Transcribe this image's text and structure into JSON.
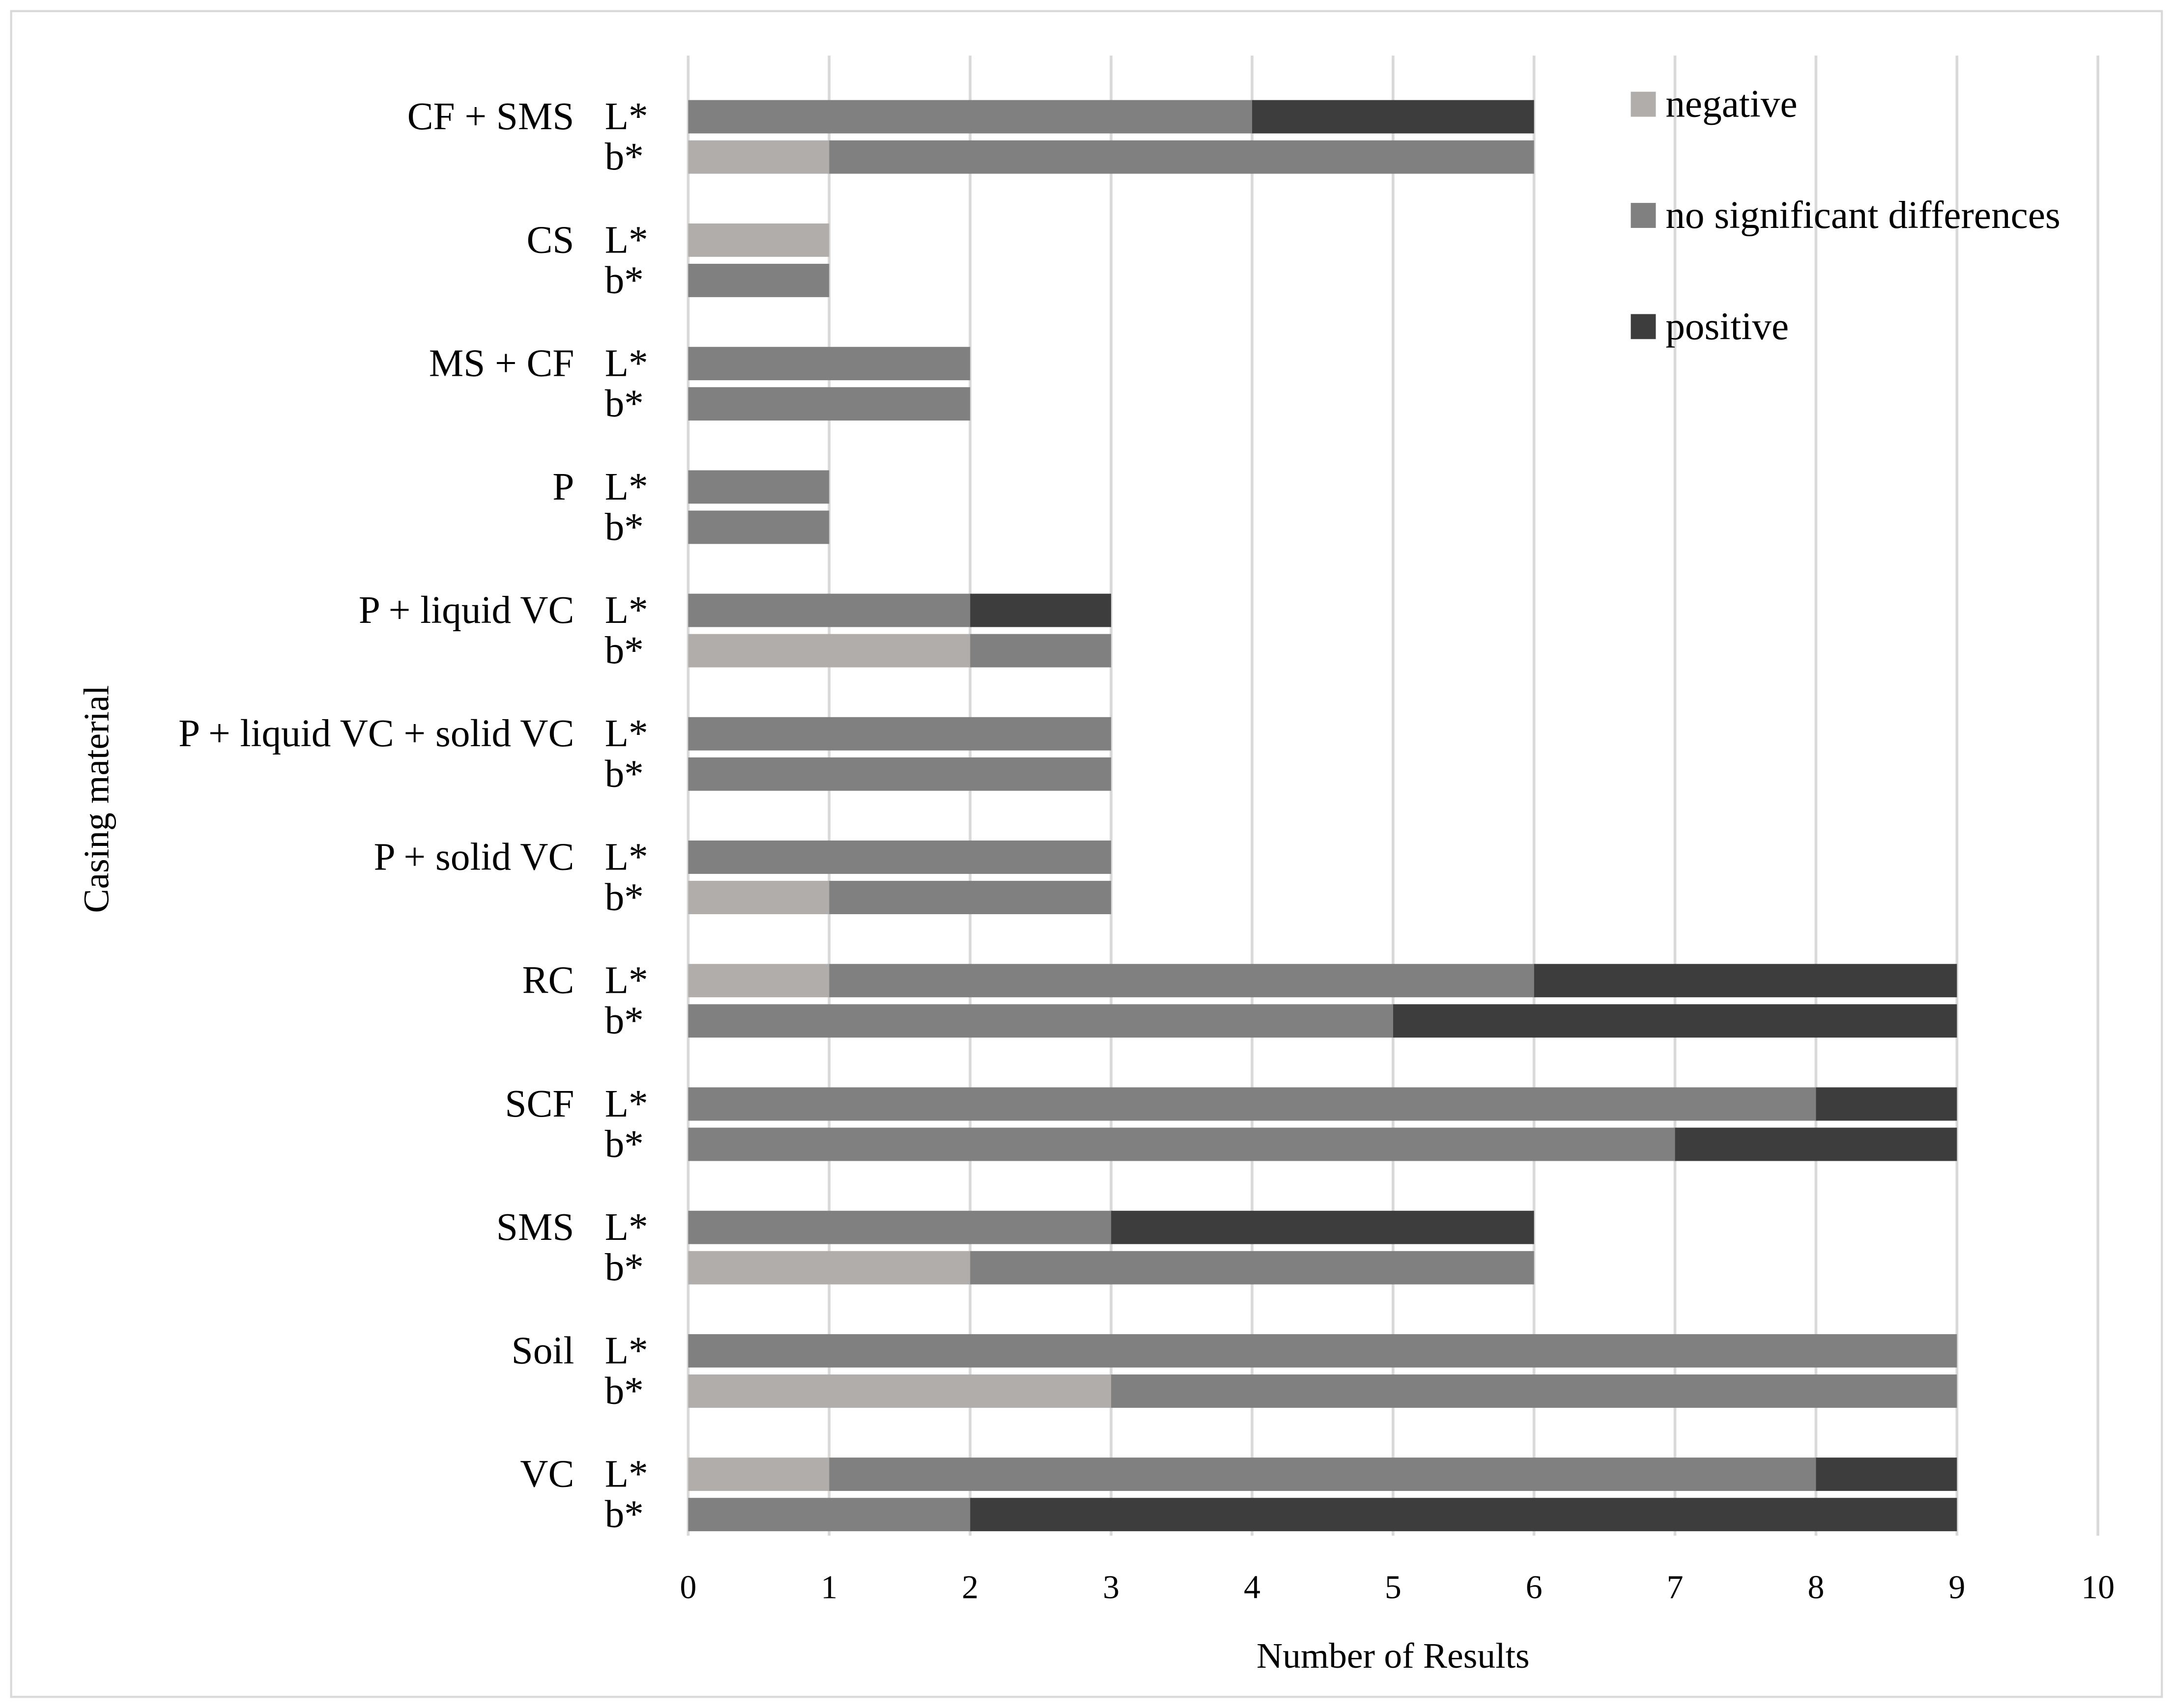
{
  "chart_data": {
    "type": "bar",
    "orientation": "horizontal",
    "stacked": true,
    "title": "",
    "xlabel": "Number of Results",
    "ylabel": "Casing material",
    "xlim": [
      0,
      10
    ],
    "xticks": [
      "0",
      "1",
      "2",
      "3",
      "4",
      "5",
      "6",
      "7",
      "8",
      "9",
      "10"
    ],
    "grid": true,
    "legend_position": "top-right",
    "series": [
      {
        "name": "negative",
        "color": "#b0adab"
      },
      {
        "name": "no significant differences",
        "color": "#808080"
      },
      {
        "name": "positive",
        "color": "#3d3d3d"
      }
    ],
    "groups": [
      {
        "label": "CF + SMS",
        "rows": [
          {
            "label": "L*",
            "values": [
              0,
              4,
              2
            ]
          },
          {
            "label": "b*",
            "values": [
              1,
              5,
              0
            ]
          }
        ]
      },
      {
        "label": "CS",
        "rows": [
          {
            "label": "L*",
            "values": [
              1,
              0,
              0
            ]
          },
          {
            "label": "b*",
            "values": [
              0,
              1,
              0
            ]
          }
        ]
      },
      {
        "label": "MS + CF",
        "rows": [
          {
            "label": "L*",
            "values": [
              0,
              2,
              0
            ]
          },
          {
            "label": "b*",
            "values": [
              0,
              2,
              0
            ]
          }
        ]
      },
      {
        "label": "P",
        "rows": [
          {
            "label": "L*",
            "values": [
              0,
              1,
              0
            ]
          },
          {
            "label": "b*",
            "values": [
              0,
              1,
              0
            ]
          }
        ]
      },
      {
        "label": "P + liquid VC",
        "rows": [
          {
            "label": "L*",
            "values": [
              0,
              2,
              1
            ]
          },
          {
            "label": "b*",
            "values": [
              2,
              1,
              0
            ]
          }
        ]
      },
      {
        "label": "P + liquid VC + solid VC",
        "rows": [
          {
            "label": "L*",
            "values": [
              0,
              3,
              0
            ]
          },
          {
            "label": "b*",
            "values": [
              0,
              3,
              0
            ]
          }
        ]
      },
      {
        "label": "P + solid VC",
        "rows": [
          {
            "label": "L*",
            "values": [
              0,
              3,
              0
            ]
          },
          {
            "label": "b*",
            "values": [
              1,
              2,
              0
            ]
          }
        ]
      },
      {
        "label": "RC",
        "rows": [
          {
            "label": "L*",
            "values": [
              1,
              5,
              3
            ]
          },
          {
            "label": "b*",
            "values": [
              0,
              5,
              4
            ]
          }
        ]
      },
      {
        "label": "SCF",
        "rows": [
          {
            "label": "L*",
            "values": [
              0,
              8,
              1
            ]
          },
          {
            "label": "b*",
            "values": [
              0,
              7,
              2
            ]
          }
        ]
      },
      {
        "label": "SMS",
        "rows": [
          {
            "label": "L*",
            "values": [
              0,
              3,
              3
            ]
          },
          {
            "label": "b*",
            "values": [
              2,
              4,
              0
            ]
          }
        ]
      },
      {
        "label": "Soil",
        "rows": [
          {
            "label": "L*",
            "values": [
              0,
              9,
              0
            ]
          },
          {
            "label": "b*",
            "values": [
              3,
              6,
              0
            ]
          }
        ]
      },
      {
        "label": "VC",
        "rows": [
          {
            "label": "L*",
            "values": [
              1,
              7,
              1
            ]
          },
          {
            "label": "b*",
            "values": [
              0,
              2,
              7
            ]
          }
        ]
      }
    ]
  }
}
